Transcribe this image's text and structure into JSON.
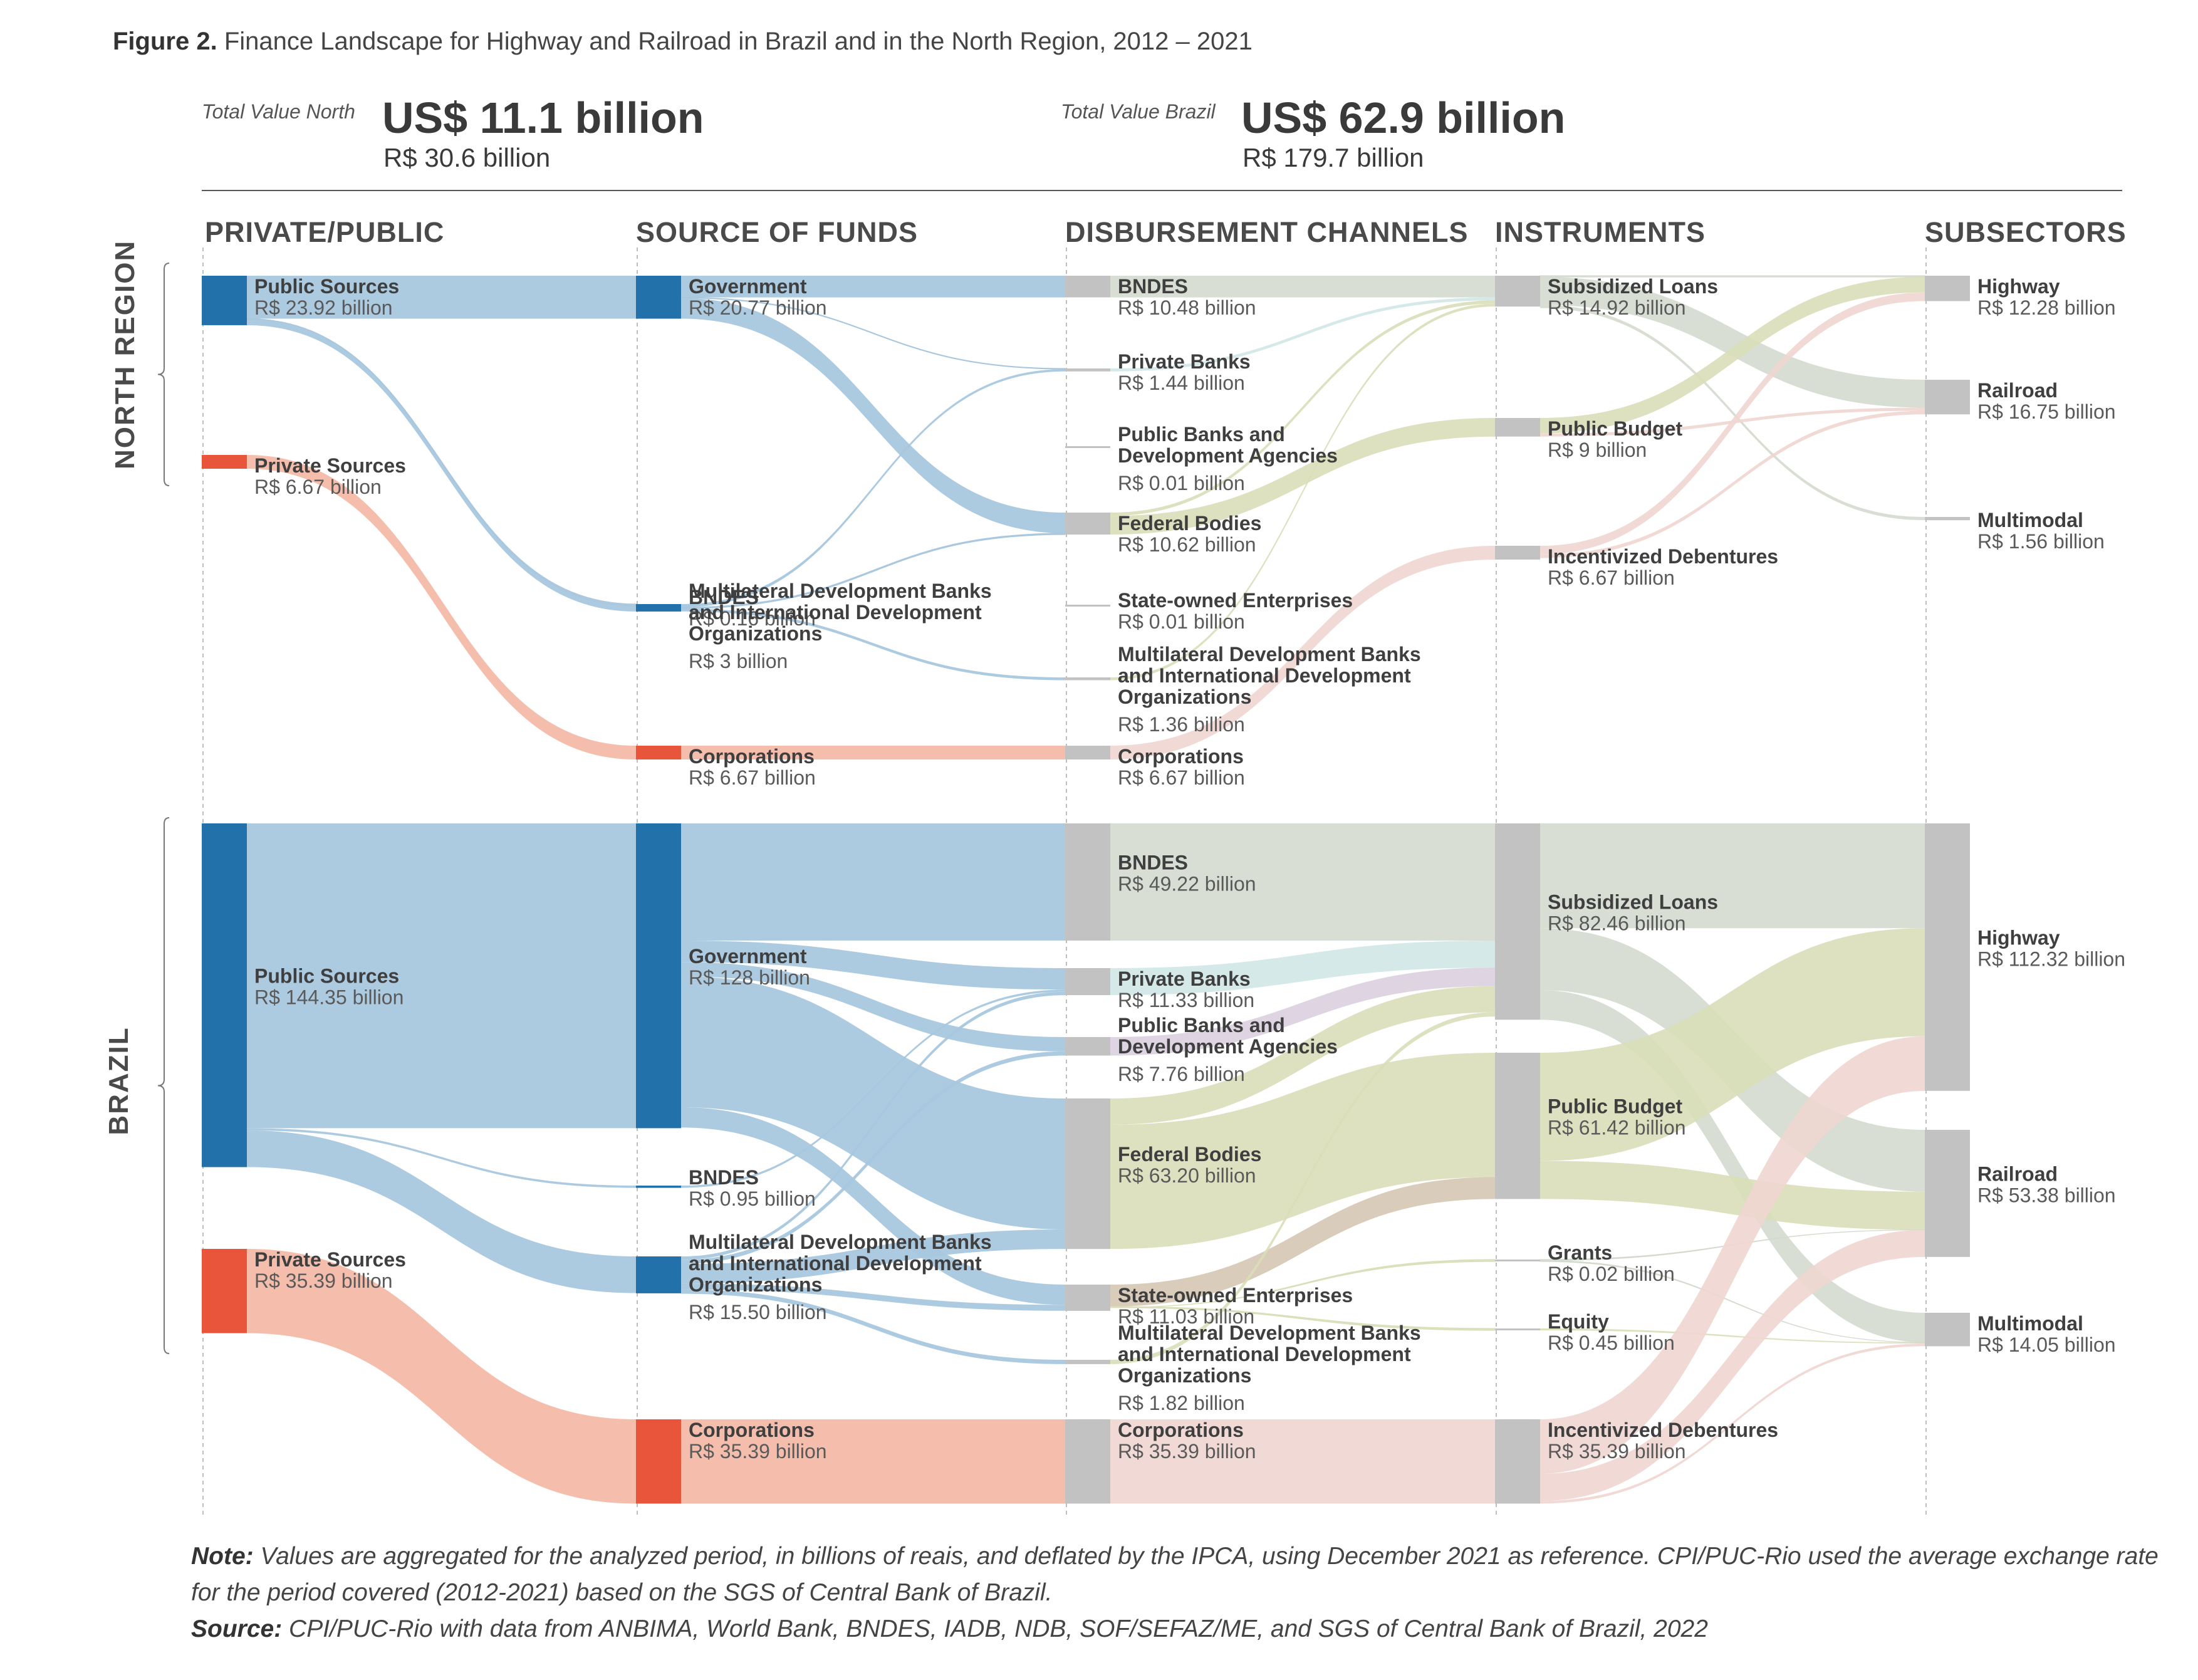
{
  "title": {
    "bold": "Figure 2.",
    "text": "Finance Landscape for Highway and Railroad in Brazil and in the North Region, 2012 – 2021"
  },
  "totals": {
    "north": {
      "label": "Total Value North",
      "usd": "US$ 11.1 billion",
      "brl": "R$ 30.6 billion"
    },
    "brazil": {
      "label": "Total Value Brazil",
      "usd": "US$ 62.9 billion",
      "brl": "R$ 179.7 billion"
    }
  },
  "columns": [
    "PRIVATE/PUBLIC",
    "SOURCE OF FUNDS",
    "DISBURSEMENT CHANNELS",
    "INSTRUMENTS",
    "SUBSECTORS"
  ],
  "regions": {
    "north": "NORTH REGION",
    "brazil": "BRAZIL"
  },
  "colors": {
    "public": "#2271ab",
    "private": "#e8553a",
    "node_grey": "#c2c2c2",
    "public_flow": "#a8c7de",
    "private_flow": "#f4bba8",
    "sub_loans_flow": "#d4dace",
    "public_budget_flow": "#d9deb8",
    "debentures_flow": "#f0d6d0",
    "private_banks_flow": "#cfe7e6",
    "public_banks_flow": "#dccfdf",
    "soe_flow": "#d6c6b3"
  },
  "north": {
    "sources": [
      {
        "name": "Public Sources",
        "value": "R$ 23.92 billion",
        "amount": 23.92
      },
      {
        "name": "Private Sources",
        "value": "R$ 6.67 billion",
        "amount": 6.67
      }
    ],
    "funds": [
      {
        "name": "Government",
        "value": "R$ 20.77 billion",
        "amount": 20.77
      },
      {
        "name": "BNDES",
        "value": "R$ 0.16 billion",
        "amount": 0.16
      },
      {
        "name": "Multilateral Development Banks and International Development Organizations",
        "lines": [
          "Multilateral Development Banks",
          "and International Development",
          "Organizations"
        ],
        "value": "R$ 3 billion",
        "amount": 3
      },
      {
        "name": "Corporations",
        "value": "R$ 6.67 billion",
        "amount": 6.67
      }
    ],
    "channels": [
      {
        "name": "BNDES",
        "value": "R$ 10.48 billion",
        "amount": 10.48
      },
      {
        "name": "Private Banks",
        "value": "R$ 1.44 billion",
        "amount": 1.44
      },
      {
        "name": "Public Banks and Development Agencies",
        "lines": [
          "Public Banks and",
          "Development Agencies"
        ],
        "value": "R$ 0.01 billion",
        "amount": 0.01
      },
      {
        "name": "Federal Bodies",
        "value": "R$ 10.62 billion",
        "amount": 10.62
      },
      {
        "name": "State-owned Enterprises",
        "value": "R$ 0.01 billion",
        "amount": 0.01
      },
      {
        "name": "Multilateral Development Banks and International Development Organizations",
        "lines": [
          "Multilateral Development Banks",
          "and International Development",
          "Organizations"
        ],
        "value": "R$ 1.36 billion",
        "amount": 1.36
      },
      {
        "name": "Corporations",
        "value": "R$ 6.67 billion",
        "amount": 6.67
      }
    ],
    "instruments": [
      {
        "name": "Subsidized Loans",
        "value": "R$ 14.92 billion",
        "amount": 14.92
      },
      {
        "name": "Public Budget",
        "value": "R$ 9 billion",
        "amount": 9
      },
      {
        "name": "Incentivized Debentures",
        "value": "R$ 6.67 billion",
        "amount": 6.67
      }
    ],
    "subsectors": [
      {
        "name": "Highway",
        "value": "R$ 12.28 billion",
        "amount": 12.28
      },
      {
        "name": "Railroad",
        "value": "R$ 16.75 billion",
        "amount": 16.75
      },
      {
        "name": "Multimodal",
        "value": "R$ 1.56 billion",
        "amount": 1.56
      }
    ]
  },
  "brazil": {
    "sources": [
      {
        "name": "Public Sources",
        "value": "R$ 144.35 billion",
        "amount": 144.35
      },
      {
        "name": "Private Sources",
        "value": "R$ 35.39 billion",
        "amount": 35.39
      }
    ],
    "funds": [
      {
        "name": "Government",
        "value": "R$ 128 billion",
        "amount": 128
      },
      {
        "name": "BNDES",
        "value": "R$ 0.95 billion",
        "amount": 0.95
      },
      {
        "name": "Multilateral Development Banks and International Development Organizations",
        "lines": [
          "Multilateral Development Banks",
          "and International Development",
          "Organizations"
        ],
        "value": "R$ 15.50 billion",
        "amount": 15.5
      },
      {
        "name": "Corporations",
        "value": "R$ 35.39 billion",
        "amount": 35.39
      }
    ],
    "channels": [
      {
        "name": "BNDES",
        "value": "R$ 49.22 billion",
        "amount": 49.22
      },
      {
        "name": "Private Banks",
        "value": "R$ 11.33 billion",
        "amount": 11.33
      },
      {
        "name": "Public Banks and Development Agencies",
        "lines": [
          "Public Banks and",
          "Development Agencies"
        ],
        "value": "R$ 7.76 billion",
        "amount": 7.76
      },
      {
        "name": "Federal Bodies",
        "value": "R$ 63.20 billion",
        "amount": 63.2
      },
      {
        "name": "State-owned Enterprises",
        "value": "R$ 11.03 billion",
        "amount": 11.03
      },
      {
        "name": "Multilateral Development Banks and International Development Organizations",
        "lines": [
          "Multilateral Development Banks",
          "and International Development",
          "Organizations"
        ],
        "value": "R$ 1.82 billion",
        "amount": 1.82
      },
      {
        "name": "Corporations",
        "value": "R$ 35.39 billion",
        "amount": 35.39
      }
    ],
    "instruments": [
      {
        "name": "Subsidized Loans",
        "value": "R$ 82.46 billion",
        "amount": 82.46
      },
      {
        "name": "Public Budget",
        "value": "R$ 61.42 billion",
        "amount": 61.42
      },
      {
        "name": "Grants",
        "value": "R$ 0.02 billion",
        "amount": 0.02
      },
      {
        "name": "Equity",
        "value": "R$ 0.45 billion",
        "amount": 0.45
      },
      {
        "name": "Incentivized Debentures",
        "value": "R$ 35.39 billion",
        "amount": 35.39
      }
    ],
    "subsectors": [
      {
        "name": "Highway",
        "value": "R$ 112.32 billion",
        "amount": 112.32
      },
      {
        "name": "Railroad",
        "value": "R$ 53.38 billion",
        "amount": 53.38
      },
      {
        "name": "Multimodal",
        "value": "R$ 14.05 billion",
        "amount": 14.05
      }
    ]
  },
  "note": {
    "label": "Note:",
    "text": "Values are aggregated for the analyzed period, in billions of reais, and deflated by the IPCA, using December 2021 as reference. CPI/PUC-Rio used the average exchange rate for the period covered (2012-2021) based on the SGS of Central Bank of Brazil."
  },
  "source": {
    "label": "Source:",
    "text": "CPI/PUC-Rio with data from ANBIMA, World Bank, BNDES, IADB, NDB, SOF/SEFAZ/ME, and SGS of Central Bank of Brazil, 2022"
  }
}
